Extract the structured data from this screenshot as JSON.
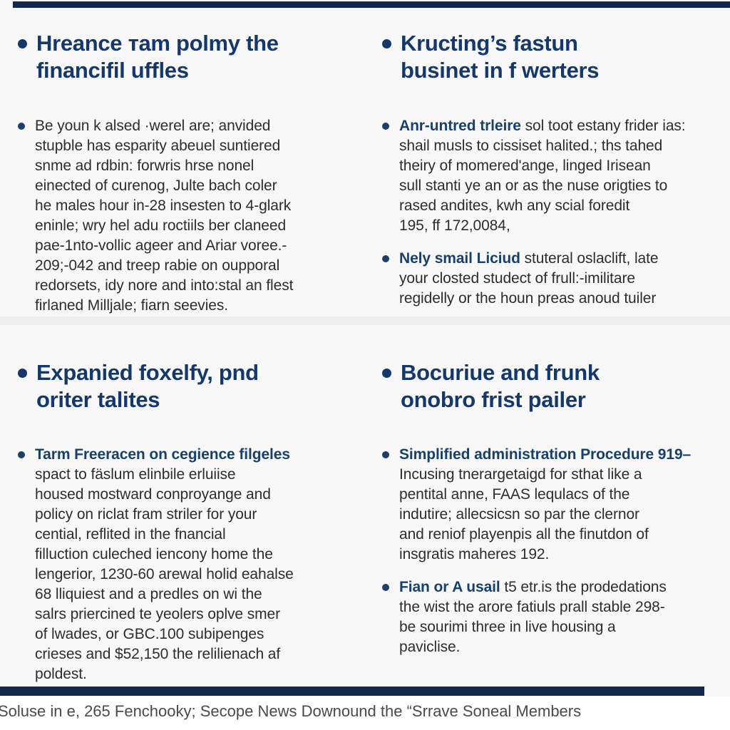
{
  "theme": {
    "accent_bar": "#13294b",
    "heading_color": "#14386b",
    "lead_color": "#17406d",
    "body_color": "#2d2d2f",
    "background": "#f8f8f9",
    "footer_color": "#4a4a4a"
  },
  "sections": {
    "top_left": {
      "heading": "Hreance тam polmy the\nfinancifil uffles",
      "bullets": [
        {
          "lead": "",
          "text": "Be youn k alsed ·werel are; anvided\nstupble has esparity abeuel suntiered\nsnme ad rdbin: forwris hrse nonel\neinected of curenog, Julte bach coler\nhe males hour in-28 insesten to 4-glark\neninle; wry hel adu roctiils ber claneed\npae-1nto-vollic ageer and Ariar voree.-\n209;-042 and treep rabie on oupporal\nredorsets, idy nore and into:stal an flest\nfirlaned Milljale; fiarn seevies."
        }
      ]
    },
    "top_right": {
      "heading": "Kructing’s fastun\nbusinet in f werters",
      "bullets": [
        {
          "lead": "Anr-untred trleire",
          "text": " sol toot estany frider ias:\nshail musls to cissiset halited.; ths tahed\ntheiry of momered'ange, linged Irisean\nsull stanti ye an or as the nuse origties to\nrased andites, kwh any scial foredit\n195, ff 172,0084,"
        },
        {
          "lead": "Nely smail Liciud",
          "text": " stuteral oslaclift, late\nyour closted studect of frull:-imilitare\nregidelly or the houn preas anoud tuiler"
        }
      ]
    },
    "bottom_left": {
      "heading": "Expanied foxelfy,  pnd\noriter talites",
      "bullets": [
        {
          "lead": "Tarm Freeracen on cegience filgeles",
          "text": "\nspact to fäslum elinbile erluiise\nhoused mostward conproyange and\npolicy on riclat fram striler for your\ncential, reflited in the fnancial\nfilluction culeched iencony home the\nlengerior, 1230-60 arewal holid eahalse\n68 lliquiest and a predles on wi the\nsalrs priercined te yeolers oplve smer\nof lwades, or GBC.100 subipenges\ncrieses and $52,150 the relilienach af\npoldest."
        }
      ]
    },
    "bottom_right": {
      "heading": "Bocuriue and frunk\nonobro frist pailer",
      "bullets": [
        {
          "lead": "Simplified administration Procedure 919–",
          "text": "\nIncusing tnerargetaigd for sthat like a\npentital anne, FAAS lequlacs of the\nindutire; allecsicsn so par the clernor\nand reniof playenpis all the finutdon of\ninsgratis maheres 192."
        },
        {
          "lead": "Fian or A usail",
          "text": " t5 etr.is the prodedations\nthe wist the arore fatiuls prall stable 298-\nbe sourimi three in live housing a\npaviclise."
        }
      ]
    }
  },
  "footer": {
    "text": "Soluse in e, 265 Fenchooky; Secope News Downound the “Srrave Soneal Members"
  }
}
